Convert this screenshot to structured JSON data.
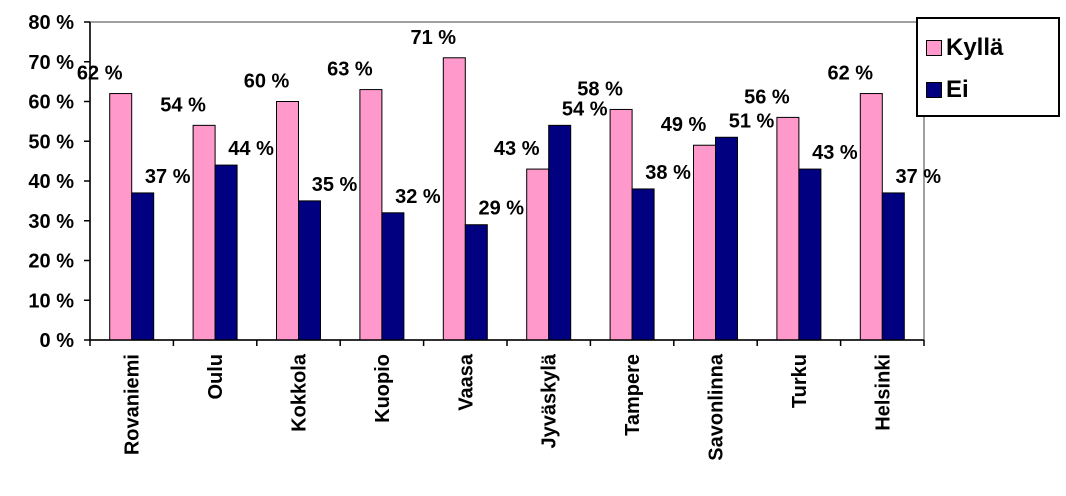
{
  "chart_data": {
    "type": "bar",
    "categories": [
      "Rovaniemi",
      "Oulu",
      "Kokkola",
      "Kuopio",
      "Vaasa",
      "Jyväskylä",
      "Tampere",
      "Savonlinna",
      "Turku",
      "Helsinki"
    ],
    "series": [
      {
        "name": "Kyllä",
        "color": "#ff99cc",
        "values": [
          62,
          54,
          60,
          63,
          71,
          43,
          58,
          49,
          56,
          62
        ],
        "labels": [
          "62 %",
          "54 %",
          "60 %",
          "63 %",
          "71 %",
          "43 %",
          "58 %",
          "49 %",
          "56 %",
          "62 %"
        ]
      },
      {
        "name": "Ei",
        "color": "#000080",
        "values": [
          37,
          44,
          35,
          32,
          29,
          54,
          38,
          51,
          43,
          37
        ],
        "labels": [
          "37 %",
          "44 %",
          "35 %",
          "32 %",
          "29 %",
          "54 %",
          "38 %",
          "51 %",
          "43 %",
          "37 %"
        ]
      }
    ],
    "ylim": [
      0,
      80
    ],
    "yticks": [
      "0 %",
      "10 %",
      "20 %",
      "30 %",
      "40 %",
      "50 %",
      "60 %",
      "70 %",
      "80 %"
    ],
    "legend_position": "top-right",
    "grid": false,
    "title": "",
    "xlabel": "",
    "ylabel": ""
  }
}
